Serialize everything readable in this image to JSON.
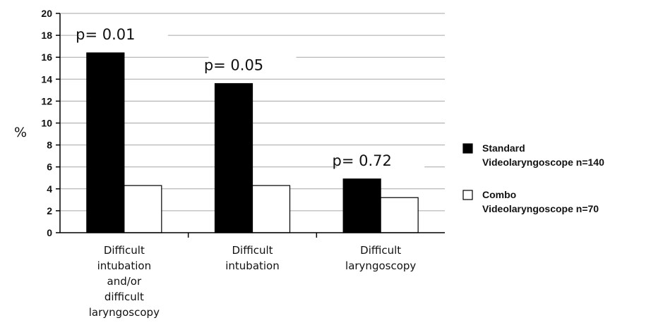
{
  "chart_data": {
    "type": "bar",
    "ylabel": "%",
    "ylim": [
      0,
      20
    ],
    "yticks": [
      0,
      2,
      4,
      6,
      8,
      10,
      12,
      14,
      16,
      18,
      20
    ],
    "grid": true,
    "legend_position": "right",
    "categories": [
      [
        "Difficult",
        "intubation",
        "and/or",
        "difficult",
        "laryngoscopy"
      ],
      [
        "Difficult",
        "intubation"
      ],
      [
        "Difficult",
        "laryngoscopy"
      ]
    ],
    "series": [
      {
        "name": [
          "Standard",
          "Videolaryngoscope n=140"
        ],
        "color": "#000000",
        "values": [
          16.4,
          13.6,
          4.9
        ]
      },
      {
        "name": [
          "Combo",
          "Videolaryngoscope n=70"
        ],
        "color": "#ffffff",
        "values": [
          4.3,
          4.3,
          3.2
        ]
      }
    ],
    "annotations": [
      "p= 0.01",
      "p= 0.05",
      "p= 0.72"
    ]
  }
}
